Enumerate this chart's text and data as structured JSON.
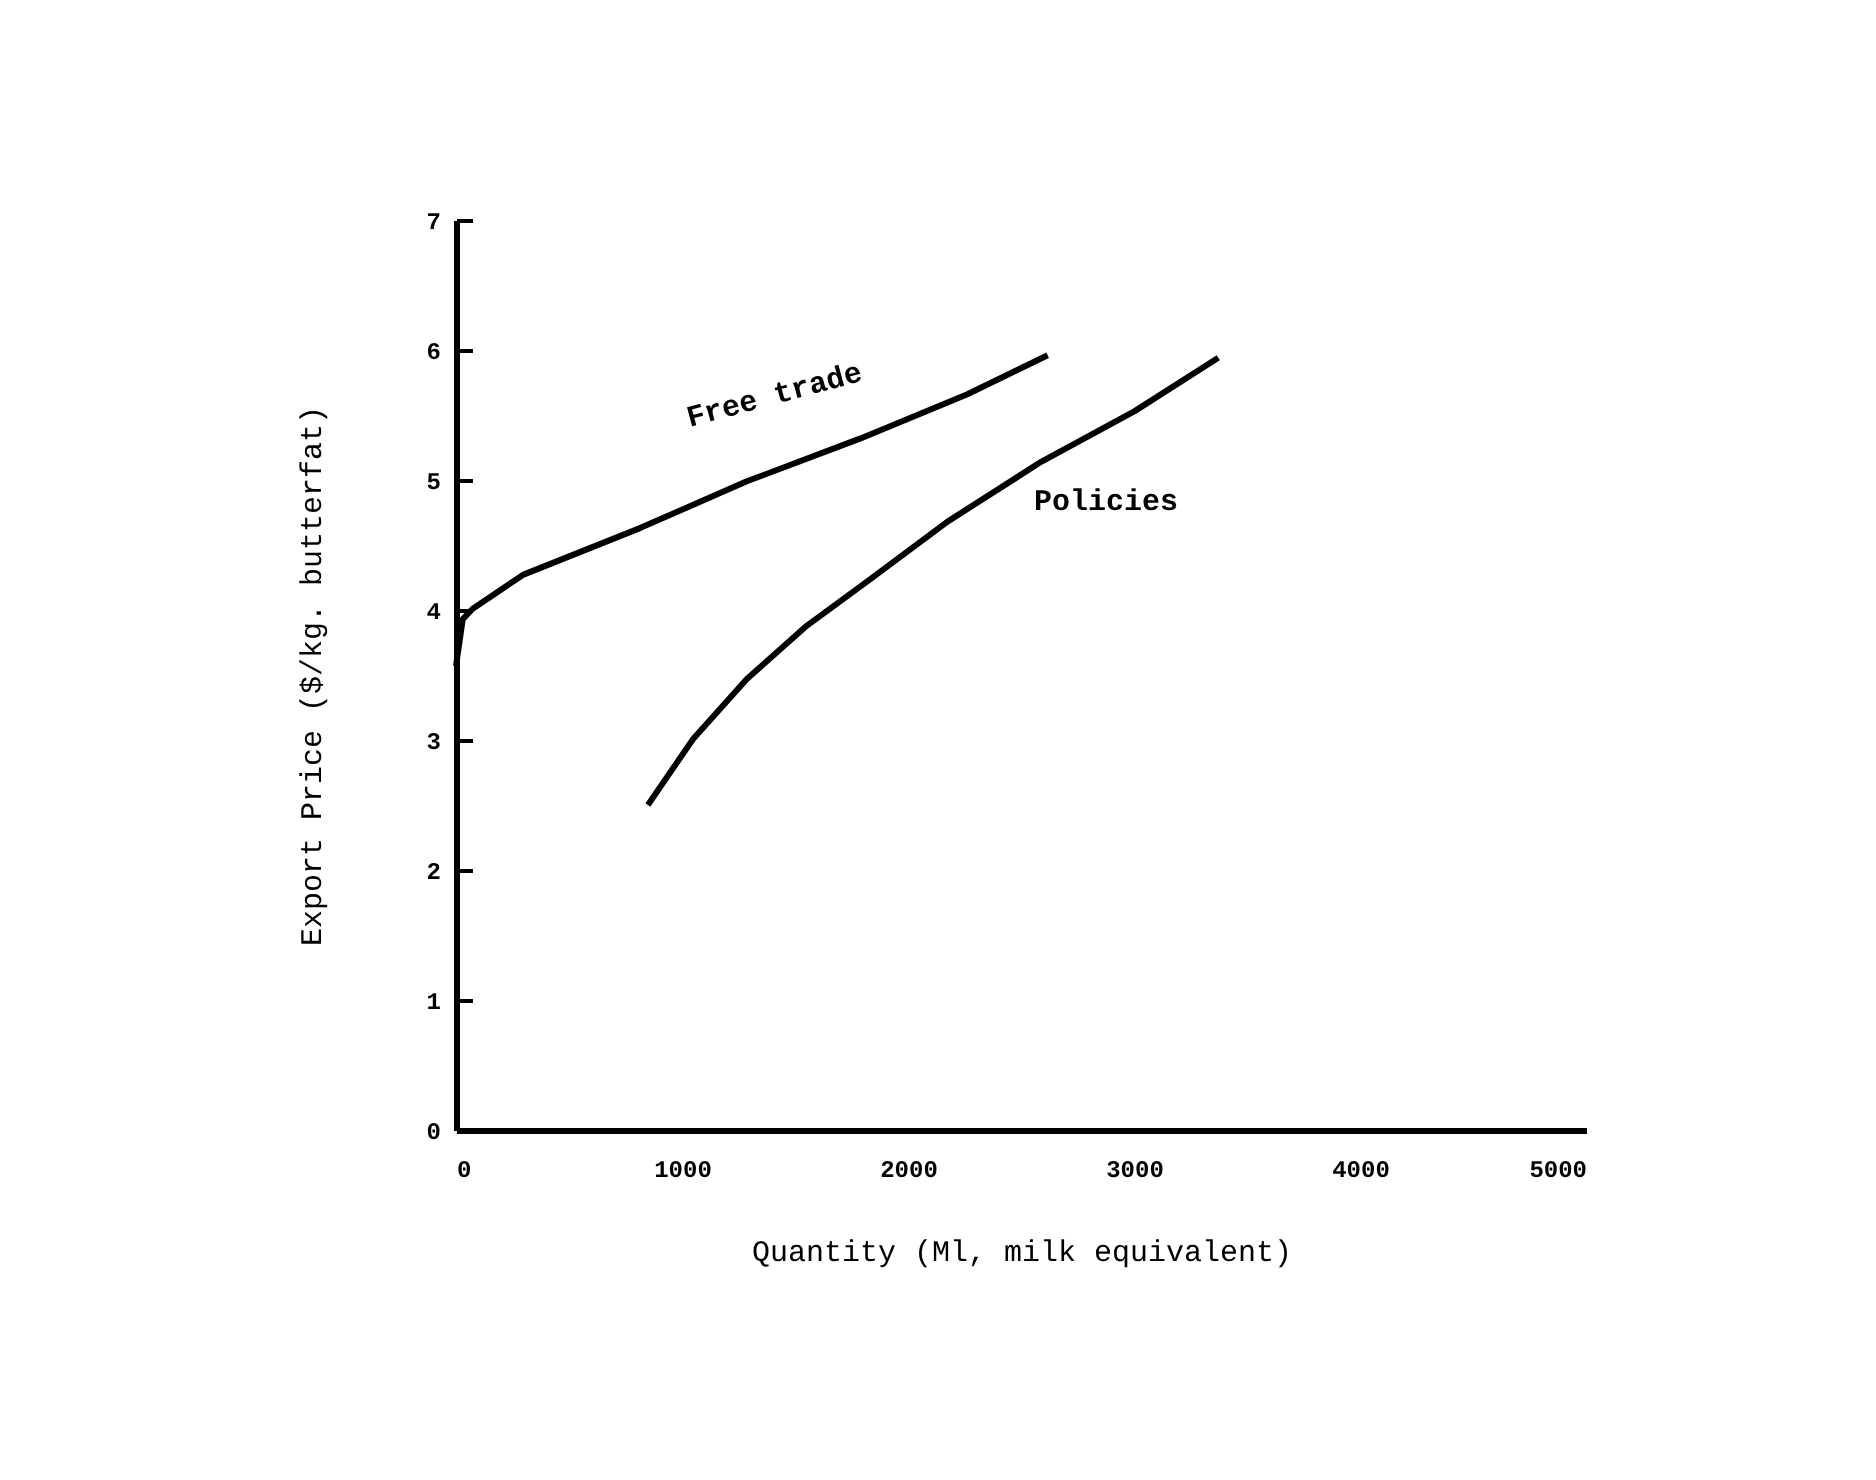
{
  "chart_data": {
    "type": "line",
    "xlabel": "Quantity (Ml, milk equivalent)",
    "ylabel": "Export Price ($/kg. butterfat)",
    "series": [
      {
        "color": "#000000",
        "x": [
          0,
          30,
          74,
          296,
          814,
          1287,
          1790,
          2263,
          2618
        ],
        "values": [
          3.57,
          3.93,
          4.01,
          4.27,
          4.63,
          4.99,
          5.32,
          5.66,
          5.96
        ]
      },
      {
        "color": "#000000",
        "x": [
          849,
          1050,
          1287,
          1553,
          1820,
          2175,
          2589,
          3003,
          3373
        ],
        "values": [
          2.5,
          3.01,
          3.47,
          3.88,
          4.22,
          4.68,
          5.14,
          5.53,
          5.94
        ]
      }
    ],
    "annotations": [
      "Free trade",
      "Policies"
    ],
    "xlim": [
      0,
      5000
    ],
    "xticks": [
      0,
      1000,
      2000,
      3000,
      4000,
      5000
    ],
    "ylim": [
      0,
      7
    ],
    "yticks": [
      0,
      1,
      2,
      3,
      4,
      5,
      6,
      7
    ],
    "grid": false,
    "legend": false,
    "marker": "none",
    "line_style": "solid"
  }
}
